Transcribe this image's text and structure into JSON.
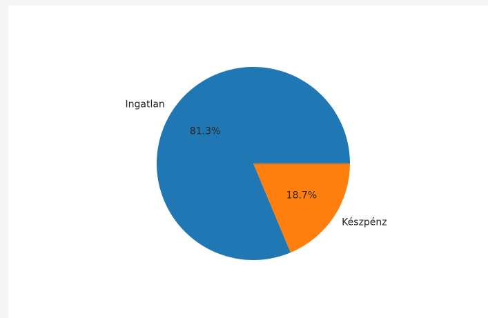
{
  "chart_data": {
    "type": "pie",
    "title": "",
    "slices": [
      {
        "label": "Ingatlan",
        "value": 81.3,
        "pct_label": "81.3%",
        "color": "#1f77b4"
      },
      {
        "label": "Készpénz",
        "value": 18.7,
        "pct_label": "18.7%",
        "color": "#ff7f0e"
      }
    ],
    "start_angle_deg": 0,
    "direction": "counterclockwise",
    "legend": "none"
  }
}
